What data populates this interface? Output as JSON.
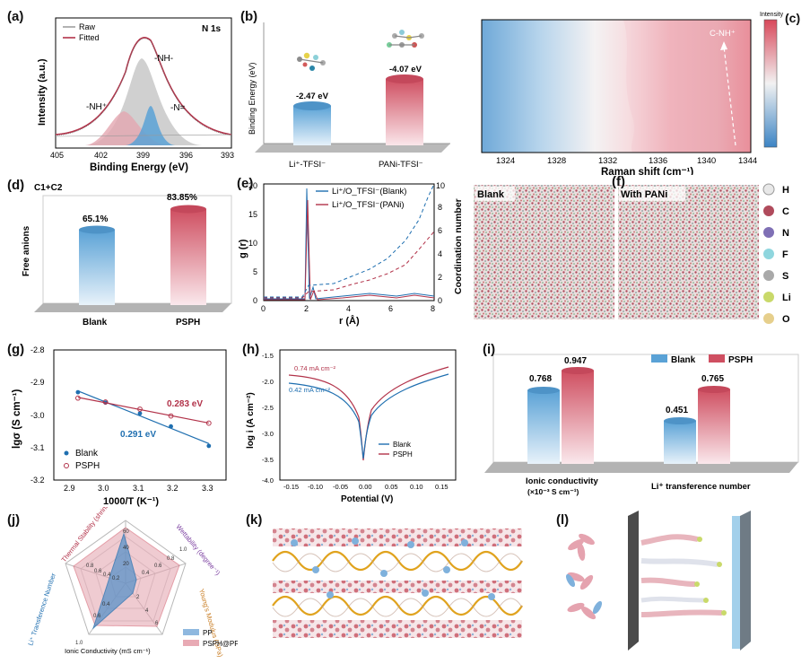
{
  "colors": {
    "blank": "#5aa2d6",
    "psph": "#cf4f61",
    "blue_dark": "#1f6fb0",
    "red_dark": "#b2334a"
  },
  "labels": {
    "a": "(a)",
    "b": "(b)",
    "c": "(c)",
    "d": "(d)",
    "e": "(e)",
    "f": "(f)",
    "g": "(g)",
    "h": "(h)",
    "i": "(i)",
    "j": "(j)",
    "k": "(k)",
    "l": "(l)"
  },
  "chart_data": [
    {
      "id": "a",
      "type": "line",
      "title": "N 1s",
      "xlabel": "Binding Energy (eV)",
      "ylabel": "Intensity (a.u.)",
      "xlim": [
        405,
        393
      ],
      "xticks": [
        "405",
        "402",
        "399",
        "396",
        "393"
      ],
      "legend": [
        "Raw",
        "Fitted"
      ],
      "peaks": [
        {
          "name": "-NH-",
          "center": 399.2
        },
        {
          "name": "-NH⁺",
          "center": 400.8
        },
        {
          "name": "-N=",
          "center": 398.4
        }
      ]
    },
    {
      "id": "b",
      "type": "bar",
      "ylabel": "Binding Energy (eV)",
      "categories": [
        "Li⁺-TFSI⁻",
        "PANi-TFSI⁻"
      ],
      "values": [
        -2.47,
        -4.07
      ],
      "value_labels": [
        "-2.47 eV",
        "-4.07 eV"
      ]
    },
    {
      "id": "c",
      "type": "heatmap",
      "xlabel": "Raman shift (cm⁻¹)",
      "xticks": [
        "1324",
        "1328",
        "1332",
        "1336",
        "1340",
        "1344"
      ],
      "annotation": "C-NH⁺",
      "colorbar_label": "Intensity"
    },
    {
      "id": "d",
      "type": "bar",
      "ylabel": "Free anions",
      "annotation": "C1+C2",
      "categories": [
        "Blank",
        "PSPH"
      ],
      "values": [
        65.1,
        83.85
      ],
      "value_labels": [
        "65.1%",
        "83.85%"
      ]
    },
    {
      "id": "e",
      "type": "line",
      "xlabel": "r (Å)",
      "ylabel": "g (r)",
      "ylabel2": "Coordination number",
      "xlim": [
        0,
        8
      ],
      "ylim": [
        0,
        20
      ],
      "y2lim": [
        0,
        10
      ],
      "xticks": [
        "0",
        "2",
        "4",
        "6",
        "8"
      ],
      "yticks": [
        "0",
        "5",
        "10",
        "15",
        "20"
      ],
      "y2ticks": [
        "0",
        "2",
        "4",
        "6",
        "8",
        "10"
      ],
      "legend": [
        "Li⁺/O_TFSI⁻(Blank)",
        "Li⁺/O_TFSI⁻(PANi)"
      ]
    },
    {
      "id": "f",
      "type": "other",
      "titles": [
        "Blank",
        "With PANi"
      ],
      "atoms": [
        "H",
        "C",
        "N",
        "F",
        "S",
        "Li",
        "O"
      ]
    },
    {
      "id": "g",
      "type": "scatter",
      "xlabel": "1000/T (K⁻¹)",
      "ylabel": "lgσ (S cm⁻¹)",
      "xlim": [
        2.85,
        3.35
      ],
      "ylim": [
        -3.2,
        -2.8
      ],
      "xticks": [
        "2.9",
        "3.0",
        "3.1",
        "3.2",
        "3.3"
      ],
      "yticks": [
        "-2.8",
        "-2.9",
        "-3.0",
        "-3.1",
        "-3.2"
      ],
      "series": [
        {
          "name": "Blank",
          "x": [
            2.92,
            3.0,
            3.1,
            3.19,
            3.3
          ],
          "y": [
            -2.93,
            -2.962,
            -2.995,
            -3.035,
            -3.095
          ],
          "ea": "0.291 eV"
        },
        {
          "name": "PSPH",
          "x": [
            2.92,
            3.0,
            3.1,
            3.19,
            3.3
          ],
          "y": [
            -2.948,
            -2.96,
            -2.982,
            -3.003,
            -3.025
          ],
          "ea": "0.283 eV"
        }
      ]
    },
    {
      "id": "h",
      "type": "line",
      "xlabel": "Potential (V)",
      "ylabel": "log i (A cm⁻²)",
      "xlim": [
        -0.175,
        0.175
      ],
      "ylim": [
        -4.0,
        -1.5
      ],
      "xticks": [
        "-0.15",
        "-0.10",
        "-0.05",
        "0.00",
        "0.05",
        "0.10",
        "0.15"
      ],
      "yticks": [
        "-1.5",
        "-2.0",
        "-2.5",
        "-3.0",
        "-3.5",
        "-4.0"
      ],
      "annotations": [
        "0.74 mA cm⁻²",
        "0.42 mA cm⁻²"
      ],
      "legend": [
        "Blank",
        "PSPH"
      ]
    },
    {
      "id": "i",
      "type": "bar",
      "categories": [
        "Ionic conductivity (×10⁻³ S cm⁻¹)",
        "Li⁺ transference number"
      ],
      "series": [
        {
          "name": "Blank",
          "values": [
            0.768,
            0.451
          ]
        },
        {
          "name": "PSPH",
          "values": [
            0.947,
            0.765
          ]
        }
      ],
      "value_labels": [
        "0.768",
        "0.947",
        "0.451",
        "0.765"
      ],
      "category_labels": [
        "Ionic conductivity",
        "(×10⁻³ S cm⁻¹)",
        "Li⁺ transference number"
      ],
      "legend": [
        "Blank",
        "PSPH"
      ]
    },
    {
      "id": "j",
      "type": "other",
      "axes": [
        "Thermal Stability (shrinkage rate at 140℃)",
        "Wettability (degree⁻¹)",
        "Young's Modulus (GPa)",
        "Ionic Conductivity (mS cm⁻¹)",
        "Li⁺ Transference Number"
      ],
      "legend": [
        "PP",
        "PSPH@PP"
      ],
      "tick_labels": [
        "0.8",
        "0.6",
        "0.4",
        "0.2",
        "60",
        "40",
        "20",
        "1.0",
        "0.8",
        "0.6",
        "0.4",
        "2",
        "4",
        "6",
        "1.0",
        "0.6",
        "0.4"
      ]
    }
  ]
}
